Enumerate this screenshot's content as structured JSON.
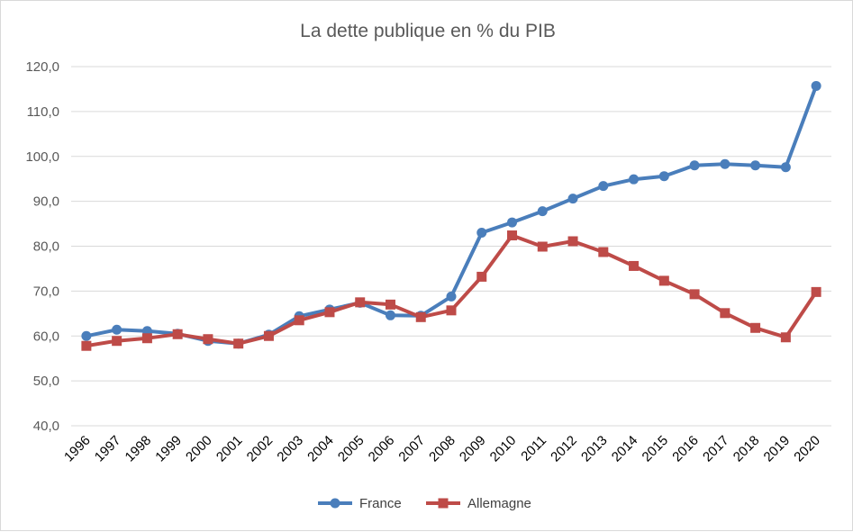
{
  "chart_data": {
    "type": "line",
    "title": "La dette publique en % du PIB",
    "xlabel": "",
    "ylabel": "",
    "categories": [
      "1996",
      "1997",
      "1998",
      "1999",
      "2000",
      "2001",
      "2002",
      "2003",
      "2004",
      "2005",
      "2006",
      "2007",
      "2008",
      "2009",
      "2010",
      "2011",
      "2012",
      "2013",
      "2014",
      "2015",
      "2016",
      "2017",
      "2018",
      "2019",
      "2020"
    ],
    "ylim": [
      40,
      120
    ],
    "y_ticks": [
      "40,0",
      "50,0",
      "60,0",
      "70,0",
      "80,0",
      "90,0",
      "100,0",
      "110,0",
      "120,0"
    ],
    "grid": "horizontal",
    "legend_position": "bottom",
    "series": [
      {
        "name": "France",
        "color": "#4a7ebb",
        "marker": "circle",
        "values": [
          60.0,
          61.4,
          61.1,
          60.5,
          58.9,
          58.3,
          60.3,
          64.4,
          65.9,
          67.4,
          64.6,
          64.5,
          68.8,
          83.0,
          85.3,
          87.8,
          90.6,
          93.4,
          94.9,
          95.6,
          98.0,
          98.3,
          98.0,
          97.6,
          115.7
        ]
      },
      {
        "name": "Allemagne",
        "color": "#be4b48",
        "marker": "square",
        "values": [
          57.8,
          58.9,
          59.5,
          60.4,
          59.3,
          58.3,
          60.0,
          63.5,
          65.3,
          67.5,
          67.0,
          64.2,
          65.7,
          73.2,
          82.4,
          79.9,
          81.1,
          78.7,
          75.6,
          72.3,
          69.3,
          65.1,
          61.8,
          59.7,
          69.8
        ]
      }
    ]
  }
}
